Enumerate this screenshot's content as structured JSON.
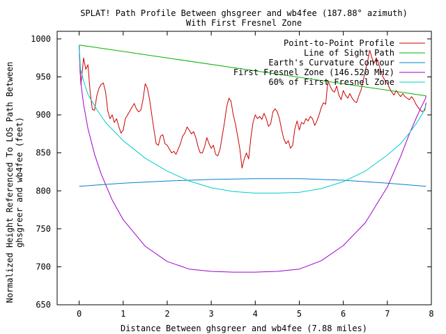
{
  "chart_data": {
    "type": "line",
    "title": "SPLAT! Path Profile Between ghsgreer and wb4fee (187.88° azimuth)",
    "subtitle": "With First Fresnel Zone",
    "xlabel": "Distance Between ghsgreer and wb4fee (7.88 miles)",
    "ylabel_line1": "Normalized Height Referenced To LOS Path Between",
    "ylabel_line2": "ghsgreer and wb4fee (feet)",
    "xlim": [
      -0.5,
      8.0
    ],
    "ylim": [
      650,
      1010
    ],
    "x_ticks": [
      0,
      1,
      2,
      3,
      4,
      5,
      6,
      7,
      8
    ],
    "y_ticks": [
      650,
      700,
      750,
      800,
      850,
      900,
      950,
      1000
    ],
    "grid": false,
    "legend_position": "top-right",
    "series": [
      {
        "name": "Point-to-Point Profile",
        "color": "#cc0000",
        "points": [
          [
            0.0,
            990
          ],
          [
            0.04,
            940
          ],
          [
            0.08,
            962
          ],
          [
            0.1,
            975
          ],
          [
            0.15,
            960
          ],
          [
            0.2,
            966
          ],
          [
            0.25,
            930
          ],
          [
            0.3,
            907
          ],
          [
            0.35,
            906
          ],
          [
            0.4,
            925
          ],
          [
            0.45,
            935
          ],
          [
            0.5,
            940
          ],
          [
            0.55,
            942
          ],
          [
            0.6,
            930
          ],
          [
            0.65,
            905
          ],
          [
            0.7,
            895
          ],
          [
            0.75,
            900
          ],
          [
            0.8,
            890
          ],
          [
            0.85,
            895
          ],
          [
            0.9,
            885
          ],
          [
            0.95,
            876
          ],
          [
            1.0,
            880
          ],
          [
            1.05,
            895
          ],
          [
            1.1,
            900
          ],
          [
            1.15,
            905
          ],
          [
            1.2,
            910
          ],
          [
            1.25,
            915
          ],
          [
            1.3,
            908
          ],
          [
            1.35,
            904
          ],
          [
            1.4,
            906
          ],
          [
            1.45,
            920
          ],
          [
            1.5,
            941
          ],
          [
            1.55,
            935
          ],
          [
            1.6,
            920
          ],
          [
            1.65,
            900
          ],
          [
            1.7,
            880
          ],
          [
            1.75,
            862
          ],
          [
            1.8,
            860
          ],
          [
            1.85,
            872
          ],
          [
            1.9,
            874
          ],
          [
            1.95,
            862
          ],
          [
            2.0,
            860
          ],
          [
            2.05,
            855
          ],
          [
            2.1,
            850
          ],
          [
            2.15,
            852
          ],
          [
            2.2,
            848
          ],
          [
            2.25,
            855
          ],
          [
            2.3,
            862
          ],
          [
            2.35,
            872
          ],
          [
            2.4,
            876
          ],
          [
            2.45,
            884
          ],
          [
            2.5,
            880
          ],
          [
            2.55,
            875
          ],
          [
            2.6,
            878
          ],
          [
            2.65,
            870
          ],
          [
            2.7,
            858
          ],
          [
            2.75,
            850
          ],
          [
            2.8,
            850
          ],
          [
            2.85,
            858
          ],
          [
            2.9,
            870
          ],
          [
            2.95,
            862
          ],
          [
            3.0,
            856
          ],
          [
            3.05,
            860
          ],
          [
            3.1,
            848
          ],
          [
            3.15,
            846
          ],
          [
            3.2,
            855
          ],
          [
            3.25,
            872
          ],
          [
            3.3,
            890
          ],
          [
            3.35,
            910
          ],
          [
            3.4,
            922
          ],
          [
            3.45,
            918
          ],
          [
            3.5,
            900
          ],
          [
            3.55,
            888
          ],
          [
            3.6,
            872
          ],
          [
            3.65,
            855
          ],
          [
            3.7,
            830
          ],
          [
            3.75,
            842
          ],
          [
            3.8,
            850
          ],
          [
            3.85,
            842
          ],
          [
            3.9,
            870
          ],
          [
            3.95,
            890
          ],
          [
            4.0,
            900
          ],
          [
            4.05,
            895
          ],
          [
            4.1,
            898
          ],
          [
            4.15,
            894
          ],
          [
            4.2,
            902
          ],
          [
            4.25,
            895
          ],
          [
            4.3,
            885
          ],
          [
            4.35,
            888
          ],
          [
            4.4,
            904
          ],
          [
            4.45,
            908
          ],
          [
            4.5,
            904
          ],
          [
            4.55,
            895
          ],
          [
            4.6,
            880
          ],
          [
            4.65,
            868
          ],
          [
            4.7,
            862
          ],
          [
            4.75,
            866
          ],
          [
            4.8,
            856
          ],
          [
            4.85,
            860
          ],
          [
            4.9,
            882
          ],
          [
            4.95,
            892
          ],
          [
            5.0,
            880
          ],
          [
            5.05,
            890
          ],
          [
            5.1,
            888
          ],
          [
            5.15,
            895
          ],
          [
            5.2,
            892
          ],
          [
            5.25,
            898
          ],
          [
            5.3,
            895
          ],
          [
            5.35,
            886
          ],
          [
            5.4,
            892
          ],
          [
            5.45,
            900
          ],
          [
            5.5,
            910
          ],
          [
            5.55,
            916
          ],
          [
            5.6,
            914
          ],
          [
            5.65,
            945
          ],
          [
            5.7,
            938
          ],
          [
            5.75,
            932
          ],
          [
            5.8,
            930
          ],
          [
            5.85,
            938
          ],
          [
            5.9,
            926
          ],
          [
            5.95,
            920
          ],
          [
            6.0,
            932
          ],
          [
            6.05,
            926
          ],
          [
            6.1,
            922
          ],
          [
            6.15,
            928
          ],
          [
            6.2,
            922
          ],
          [
            6.25,
            918
          ],
          [
            6.3,
            916
          ],
          [
            6.35,
            925
          ],
          [
            6.4,
            932
          ],
          [
            6.45,
            945
          ],
          [
            6.5,
            958
          ],
          [
            6.55,
            970
          ],
          [
            6.6,
            985
          ],
          [
            6.65,
            975
          ],
          [
            6.7,
            968
          ],
          [
            6.75,
            975
          ],
          [
            6.8,
            968
          ],
          [
            6.85,
            958
          ],
          [
            6.9,
            950
          ],
          [
            6.95,
            945
          ],
          [
            7.0,
            942
          ],
          [
            7.05,
            935
          ],
          [
            7.1,
            930
          ],
          [
            7.15,
            926
          ],
          [
            7.2,
            932
          ],
          [
            7.25,
            928
          ],
          [
            7.3,
            924
          ],
          [
            7.35,
            928
          ],
          [
            7.4,
            924
          ],
          [
            7.45,
            922
          ],
          [
            7.5,
            920
          ],
          [
            7.55,
            924
          ],
          [
            7.6,
            920
          ],
          [
            7.65,
            914
          ],
          [
            7.7,
            910
          ],
          [
            7.75,
            906
          ],
          [
            7.8,
            904
          ],
          [
            7.85,
            906
          ],
          [
            7.88,
            916
          ]
        ]
      },
      {
        "name": "Line of Sight Path",
        "color": "#00b000",
        "points": [
          [
            0.0,
            992
          ],
          [
            7.88,
            925
          ]
        ]
      },
      {
        "name": "Earth's Curvature Contour",
        "color": "#0080cc",
        "points": [
          [
            0.0,
            806
          ],
          [
            1.0,
            810
          ],
          [
            2.0,
            813
          ],
          [
            3.0,
            815
          ],
          [
            4.0,
            816
          ],
          [
            5.0,
            816
          ],
          [
            6.0,
            814
          ],
          [
            7.0,
            810
          ],
          [
            7.88,
            806
          ]
        ]
      },
      {
        "name": "First Fresnel Zone (146.520 MHz)",
        "color": "#a000cc",
        "points": [
          [
            0.0,
            992
          ],
          [
            0.02,
            957
          ],
          [
            0.05,
            937
          ],
          [
            0.1,
            914
          ],
          [
            0.2,
            882
          ],
          [
            0.35,
            848
          ],
          [
            0.5,
            822
          ],
          [
            0.75,
            788
          ],
          [
            1.0,
            762
          ],
          [
            1.5,
            727
          ],
          [
            2.0,
            707
          ],
          [
            2.5,
            697
          ],
          [
            3.0,
            694
          ],
          [
            3.5,
            693
          ],
          [
            4.0,
            693
          ],
          [
            4.5,
            694
          ],
          [
            5.0,
            697
          ],
          [
            5.5,
            708
          ],
          [
            6.0,
            728
          ],
          [
            6.5,
            758
          ],
          [
            7.0,
            805
          ],
          [
            7.3,
            845
          ],
          [
            7.5,
            875
          ],
          [
            7.65,
            895
          ],
          [
            7.75,
            908
          ],
          [
            7.82,
            916
          ],
          [
            7.86,
            921
          ],
          [
            7.88,
            925
          ]
        ]
      },
      {
        "name": "60% of First Fresnel Zone",
        "color": "#00cccc",
        "points": [
          [
            0.0,
            992
          ],
          [
            0.03,
            960
          ],
          [
            0.1,
            945
          ],
          [
            0.2,
            927
          ],
          [
            0.4,
            907
          ],
          [
            0.6,
            890
          ],
          [
            1.0,
            866
          ],
          [
            1.5,
            843
          ],
          [
            2.0,
            826
          ],
          [
            2.5,
            813
          ],
          [
            3.0,
            804
          ],
          [
            3.5,
            799
          ],
          [
            4.0,
            797
          ],
          [
            4.5,
            797
          ],
          [
            5.0,
            798
          ],
          [
            5.5,
            803
          ],
          [
            6.0,
            812
          ],
          [
            6.5,
            826
          ],
          [
            7.0,
            847
          ],
          [
            7.3,
            862
          ],
          [
            7.5,
            876
          ],
          [
            7.7,
            892
          ],
          [
            7.8,
            902
          ],
          [
            7.88,
            913
          ]
        ]
      }
    ]
  }
}
